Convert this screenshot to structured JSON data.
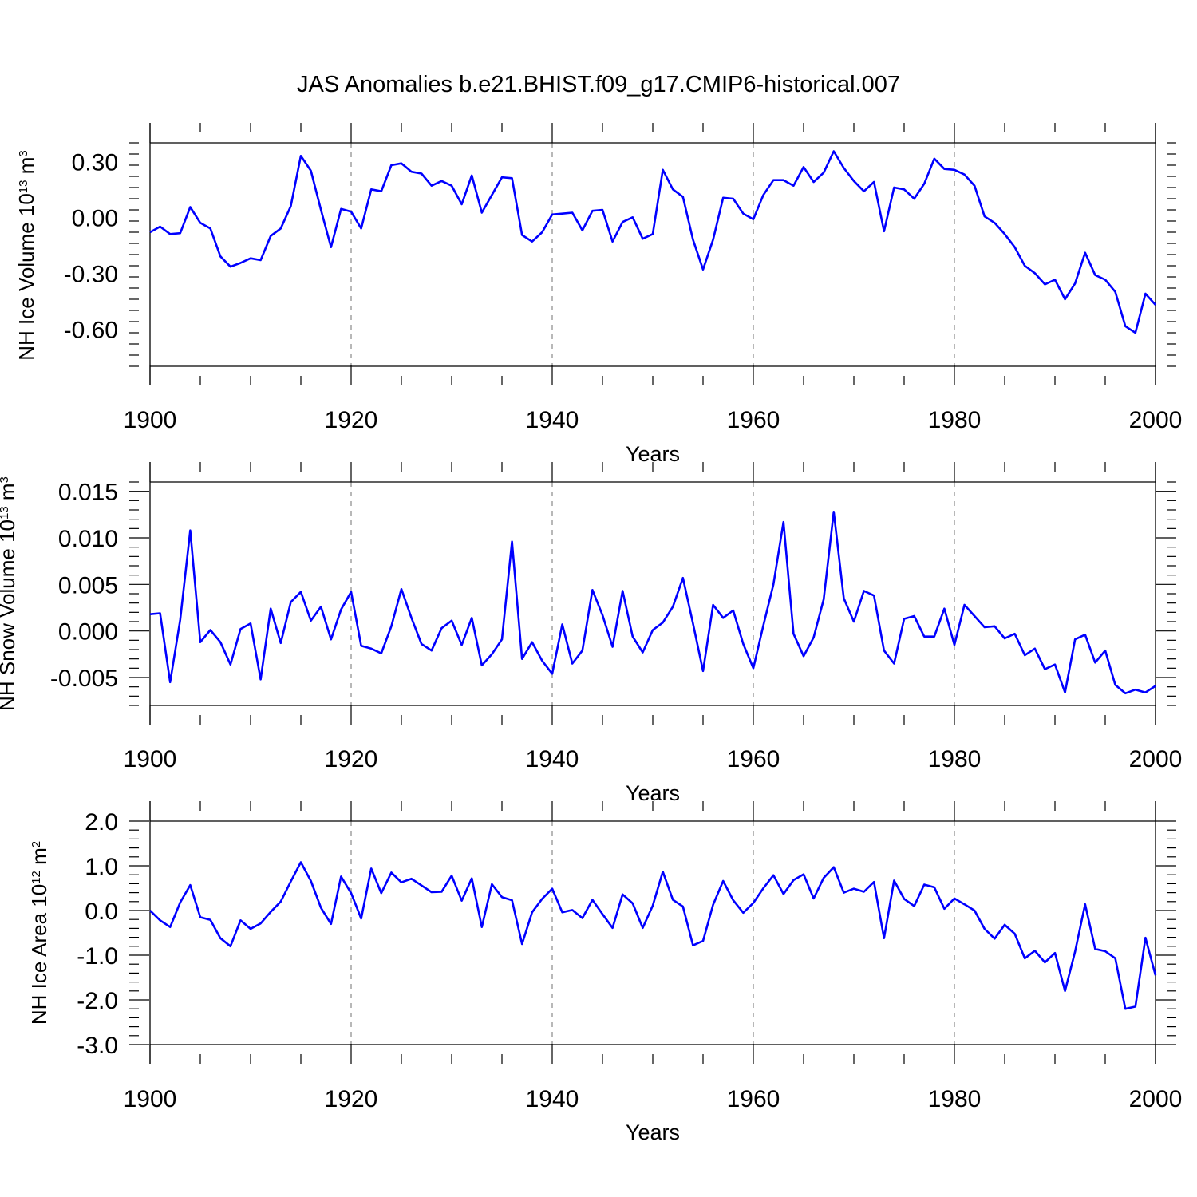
{
  "title": "JAS Anomalies b.e21.BHIST.f09_g17.CMIP6-historical.007",
  "series_color": "#0000ff",
  "chart_data": [
    {
      "type": "line",
      "ylabel": {
        "prefix": "NH Ice Volume 10",
        "exp": "13",
        "unit": " m",
        "unit_exp": "3"
      },
      "xlabel": "Years",
      "xlim": [
        1900,
        2000
      ],
      "ylim": [
        -0.8,
        0.4
      ],
      "xticks": [
        "1900",
        "1920",
        "1940",
        "1960",
        "1980",
        "2000"
      ],
      "yticks": [
        "0.30",
        "0.00",
        "-0.30",
        "-0.60"
      ],
      "grid_x": [
        1920,
        1940,
        1960,
        1980
      ],
      "x_start": 1900,
      "values": [
        -0.08,
        -0.05,
        -0.09,
        -0.085,
        0.055,
        -0.03,
        -0.06,
        -0.21,
        -0.265,
        -0.245,
        -0.22,
        -0.23,
        -0.1,
        -0.06,
        0.06,
        0.33,
        0.25,
        0.04,
        -0.16,
        0.045,
        0.03,
        -0.06,
        0.15,
        0.14,
        0.28,
        0.29,
        0.245,
        0.235,
        0.17,
        0.195,
        0.17,
        0.07,
        0.225,
        0.025,
        0.12,
        0.215,
        0.21,
        -0.095,
        -0.13,
        -0.08,
        0.015,
        0.02,
        0.025,
        -0.07,
        0.035,
        0.04,
        -0.13,
        -0.025,
        0.0,
        -0.115,
        -0.09,
        0.255,
        0.15,
        0.11,
        -0.12,
        -0.28,
        -0.12,
        0.105,
        0.1,
        0.02,
        -0.01,
        0.12,
        0.2,
        0.2,
        0.17,
        0.27,
        0.19,
        0.24,
        0.355,
        0.265,
        0.195,
        0.14,
        0.19,
        -0.075,
        0.16,
        0.15,
        0.1,
        0.18,
        0.315,
        0.26,
        0.255,
        0.23,
        0.17,
        0.005,
        -0.03,
        -0.09,
        -0.16,
        -0.26,
        -0.3,
        -0.36,
        -0.335,
        -0.44,
        -0.355,
        -0.19,
        -0.31,
        -0.335,
        -0.4,
        -0.585,
        -0.62,
        -0.41,
        -0.47
      ]
    },
    {
      "type": "line",
      "ylabel": {
        "prefix": "NH Snow Volume 10",
        "exp": "13",
        "unit": " m",
        "unit_exp": "3"
      },
      "xlabel": "Years",
      "xlim": [
        1900,
        2000
      ],
      "ylim": [
        -0.008,
        0.016
      ],
      "xticks": [
        "1900",
        "1920",
        "1940",
        "1960",
        "1980",
        "2000"
      ],
      "yticks": [
        "0.015",
        "0.010",
        "0.005",
        "0.000",
        "-0.005"
      ],
      "grid_x": [
        1920,
        1940,
        1960,
        1980
      ],
      "x_start": 1900,
      "values": [
        0.0018,
        0.0019,
        -0.0055,
        0.0012,
        0.0108,
        -0.0012,
        0.0001,
        -0.0012,
        -0.0036,
        0.0002,
        0.0008,
        -0.0052,
        0.0024,
        -0.0013,
        0.0031,
        0.0042,
        0.0011,
        0.0026,
        -0.0009,
        0.0023,
        0.0042,
        -0.0016,
        -0.0019,
        -0.0024,
        0.0005,
        0.0045,
        0.0014,
        -0.0014,
        -0.0021,
        0.0003,
        0.0011,
        -0.0015,
        0.0014,
        -0.0037,
        -0.0025,
        -0.0009,
        0.0096,
        -0.003,
        -0.0012,
        -0.0032,
        -0.0046,
        0.0007,
        -0.0035,
        -0.0021,
        0.0044,
        0.0017,
        -0.0017,
        0.0043,
        -0.0006,
        -0.0023,
        0.0001,
        0.0009,
        0.0026,
        0.0057,
        0.0008,
        -0.0043,
        0.0028,
        0.0014,
        0.0022,
        -0.0014,
        -0.004,
        0.0006,
        0.005,
        0.0117,
        -0.0003,
        -0.0027,
        -0.0007,
        0.0034,
        0.0128,
        0.0035,
        0.001,
        0.0043,
        0.0038,
        -0.0021,
        -0.0035,
        0.0013,
        0.0016,
        -0.0006,
        -0.0006,
        0.0024,
        -0.0015,
        0.0028,
        0.0016,
        0.0004,
        0.0005,
        -0.0008,
        -0.0003,
        -0.0026,
        -0.0019,
        -0.0041,
        -0.0036,
        -0.0066,
        -0.0009,
        -0.0004,
        -0.0034,
        -0.0021,
        -0.0058,
        -0.0067,
        -0.0063,
        -0.0066,
        -0.0059
      ]
    },
    {
      "type": "line",
      "ylabel": {
        "prefix": "NH Ice Area 10",
        "exp": "12",
        "unit": " m",
        "unit_exp": "2"
      },
      "xlabel": "Years",
      "xlim": [
        1900,
        2000
      ],
      "ylim": [
        -3.0,
        2.0
      ],
      "xticks": [
        "1900",
        "1920",
        "1940",
        "1960",
        "1980",
        "2000"
      ],
      "yticks": [
        "2.0",
        "1.0",
        "0.0",
        "-1.0",
        "-2.0",
        "-3.0"
      ],
      "grid_x": [
        1920,
        1940,
        1960,
        1980
      ],
      "x_start": 1900,
      "values": [
        0.0,
        -0.22,
        -0.37,
        0.18,
        0.57,
        -0.15,
        -0.21,
        -0.62,
        -0.8,
        -0.22,
        -0.41,
        -0.29,
        -0.03,
        0.2,
        0.65,
        1.08,
        0.66,
        0.06,
        -0.3,
        0.76,
        0.39,
        -0.18,
        0.94,
        0.39,
        0.85,
        0.63,
        0.71,
        0.56,
        0.41,
        0.42,
        0.78,
        0.22,
        0.72,
        -0.37,
        0.59,
        0.3,
        0.23,
        -0.75,
        -0.04,
        0.26,
        0.49,
        -0.04,
        0.01,
        -0.17,
        0.24,
        -0.08,
        -0.39,
        0.36,
        0.16,
        -0.39,
        0.11,
        0.87,
        0.24,
        0.09,
        -0.78,
        -0.68,
        0.13,
        0.66,
        0.23,
        -0.05,
        0.17,
        0.5,
        0.79,
        0.37,
        0.68,
        0.81,
        0.27,
        0.73,
        0.97,
        0.4,
        0.49,
        0.42,
        0.64,
        -0.62,
        0.67,
        0.26,
        0.1,
        0.58,
        0.52,
        0.04,
        0.27,
        0.14,
        0.0,
        -0.41,
        -0.63,
        -0.32,
        -0.52,
        -1.07,
        -0.9,
        -1.16,
        -0.95,
        -1.8,
        -0.92,
        0.14,
        -0.86,
        -0.91,
        -1.07,
        -2.2,
        -2.15,
        -0.61,
        -1.45
      ]
    }
  ]
}
